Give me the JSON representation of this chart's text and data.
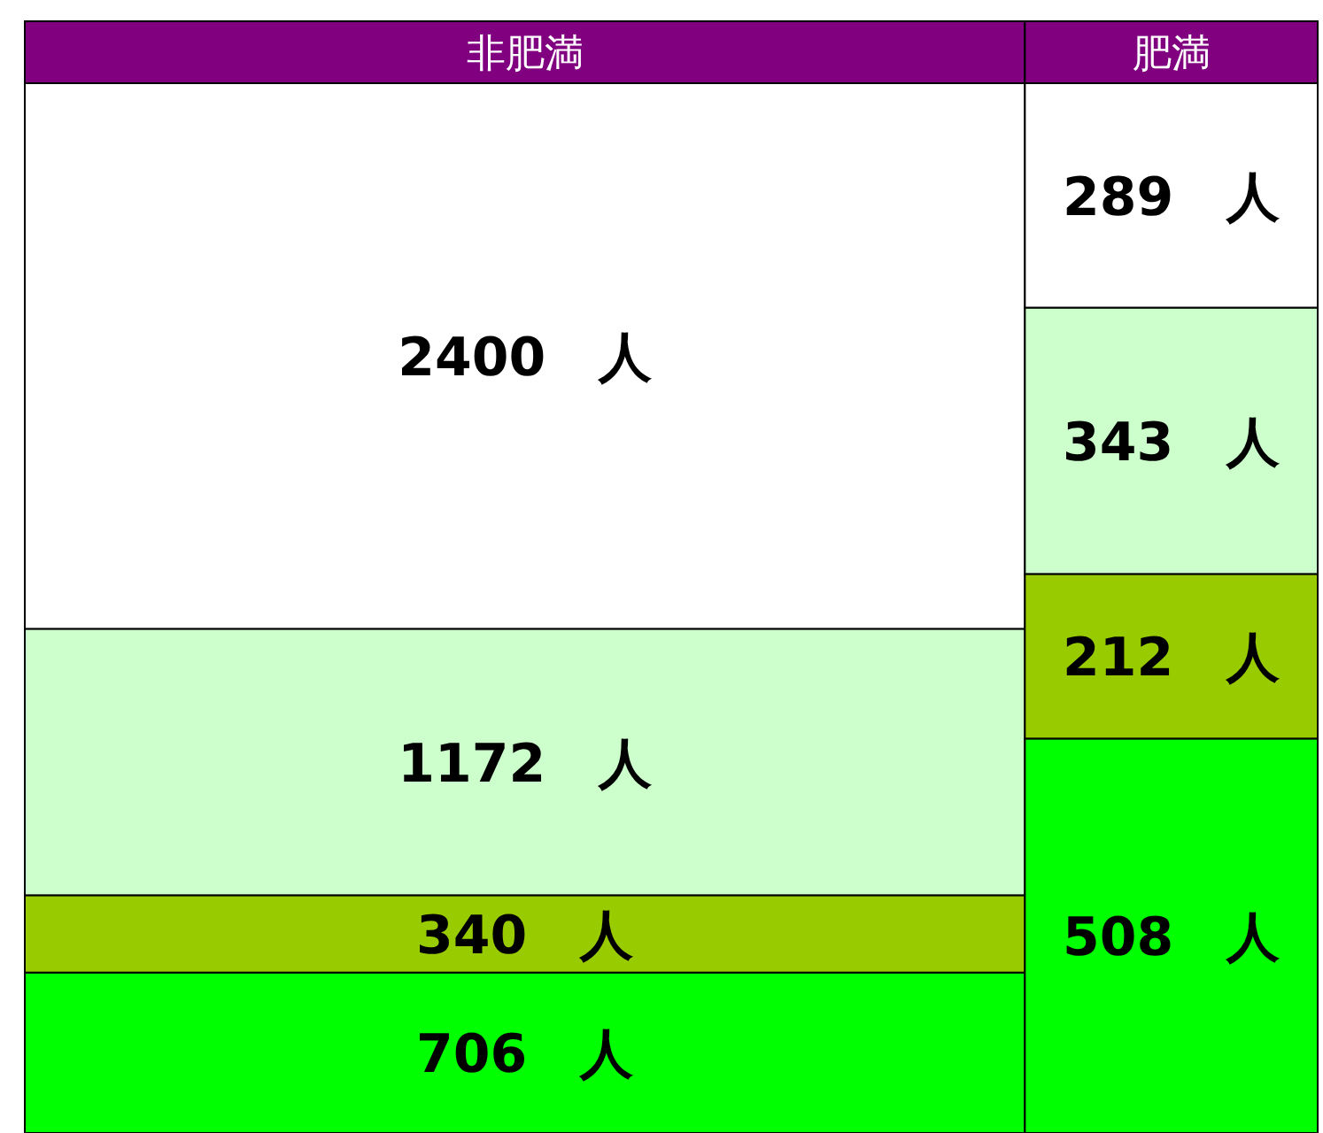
{
  "chart_data": {
    "type": "other",
    "categories": [
      "非肥満",
      "肥満"
    ],
    "series": [
      {
        "color": "#00ff00",
        "values": [
          706,
          508
        ],
        "value_labels": [
          "706　人",
          "508　人"
        ]
      },
      {
        "color": "#99cc00",
        "values": [
          340,
          212
        ],
        "value_labels": [
          "340　人",
          "212　人"
        ]
      },
      {
        "color": "#ccffcc",
        "values": [
          1172,
          343
        ],
        "value_labels": [
          "1172　人",
          "343　人"
        ]
      },
      {
        "color": "#ffffff",
        "values": [
          2400,
          289
        ],
        "value_labels": [
          "2400　人",
          "289　人"
        ]
      }
    ]
  }
}
